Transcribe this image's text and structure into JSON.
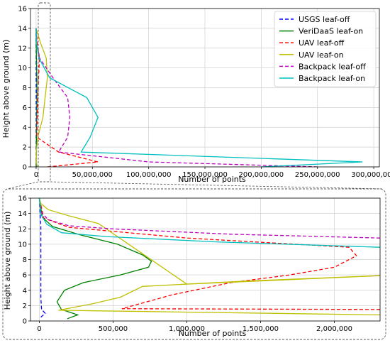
{
  "chart_data": [
    {
      "type": "line",
      "xlabel": "Number of points",
      "ylabel": "Height above ground (m)",
      "xlim": [
        -5000000,
        305000000
      ],
      "ylim": [
        0,
        16
      ],
      "xticks": [
        0,
        50000000,
        100000000,
        150000000,
        200000000,
        250000000,
        300000000
      ],
      "xtick_labels": [
        "0",
        "50,000,000",
        "100,000,000",
        "150,000,000",
        "200,000,000",
        "250,000,000",
        "300,000,000"
      ],
      "yticks": [
        0,
        2,
        4,
        6,
        8,
        10,
        12,
        14,
        16
      ],
      "ytick_labels": [
        "0",
        "2",
        "4",
        "6",
        "8",
        "10",
        "12",
        "14",
        "16"
      ],
      "grid": true,
      "legend": "top-right",
      "series": [
        {
          "name": "USGS leaf-off",
          "color": "#0000ff",
          "dash": "dashed",
          "x": [
            40000,
            60000,
            20000,
            10000,
            10000,
            10000,
            10000,
            10000,
            5000,
            0
          ],
          "y": [
            0,
            0.5,
            1.5,
            3,
            5,
            7,
            9,
            11,
            12.5,
            14
          ]
        },
        {
          "name": "VeriDaaS leaf-on",
          "color": "#008000",
          "dash": "solid",
          "x": [
            300000,
            100000,
            200000,
            300000,
            500000,
            750000,
            700000,
            300000,
            50000,
            0
          ],
          "y": [
            0,
            0.5,
            1.5,
            3,
            5,
            7,
            9,
            11,
            12.5,
            14
          ]
        },
        {
          "name": "UAV leaf-off",
          "color": "#ff0000",
          "dash": "dashed",
          "x": [
            10000000,
            55000000,
            20000000,
            600000,
            1000000,
            1600000,
            2200000,
            3000000,
            1000000,
            0
          ],
          "y": [
            0,
            0.5,
            1.5,
            3,
            5,
            7,
            9,
            11,
            12.5,
            14
          ]
        },
        {
          "name": "UAV leaf-on",
          "color": "#bfbf00",
          "dash": "solid",
          "x": [
            1000000,
            300000,
            150000,
            1500000,
            6000000,
            8000000,
            10000000,
            9000000,
            4000000,
            0
          ],
          "y": [
            0,
            0.5,
            1.5,
            3,
            5,
            7,
            9,
            11,
            12.5,
            14
          ]
        },
        {
          "name": "Backpack leaf-off",
          "color": "#bf00bf",
          "dash": "dashed",
          "x": [
            250000000,
            100000000,
            20000000,
            28000000,
            30000000,
            28000000,
            15000000,
            3000000,
            500000,
            0
          ],
          "y": [
            0,
            0.5,
            1.5,
            3,
            5,
            7,
            9,
            11,
            12.5,
            14
          ]
        },
        {
          "name": "Backpack leaf-on",
          "color": "#00bfbf",
          "dash": "solid",
          "x": [
            200000000,
            290000000,
            40000000,
            48000000,
            55000000,
            45000000,
            12000000,
            2500000,
            300000,
            0
          ],
          "y": [
            0,
            0.5,
            1.5,
            3,
            5,
            7,
            9,
            11,
            12.5,
            14
          ]
        }
      ]
    },
    {
      "type": "line",
      "xlabel": "Number of points",
      "ylabel": "Height above ground (m)",
      "xlim": [
        -60000,
        2310000
      ],
      "ylim": [
        0,
        16
      ],
      "xticks": [
        0,
        500000,
        1000000,
        1500000,
        2000000
      ],
      "xtick_labels": [
        "0",
        "500,000",
        "1,000,000",
        "1,500,000",
        "2,000,000"
      ],
      "yticks": [
        0,
        2,
        4,
        6,
        8,
        10,
        12,
        14,
        16
      ],
      "ytick_labels": [
        "0",
        "2",
        "4",
        "6",
        "8",
        "10",
        "12",
        "14",
        "16"
      ],
      "grid": true,
      "series": [
        {
          "name": "USGS leaf-off",
          "color": "#0000ff",
          "dash": "dashed",
          "x": [
            10000,
            40000,
            15000,
            10000,
            10000,
            10000,
            10000,
            10000,
            10000,
            5000,
            0
          ],
          "y": [
            0.5,
            1.0,
            1.5,
            3,
            5,
            7,
            9,
            11,
            12.5,
            14,
            16
          ]
        },
        {
          "name": "VeriDaaS leaf-on",
          "color": "#008000",
          "dash": "solid",
          "x": [
            190000,
            260000,
            150000,
            120000,
            170000,
            300000,
            550000,
            740000,
            760000,
            700000,
            530000,
            280000,
            90000,
            20000,
            0
          ],
          "y": [
            0.3,
            0.8,
            1.5,
            2.5,
            4,
            5,
            6,
            7,
            7.8,
            8.6,
            10,
            11.2,
            12.3,
            13.5,
            16
          ]
        },
        {
          "name": "UAV leaf-off",
          "color": "#ff0000",
          "dash": "dashed",
          "x": [
            2310000,
            560000,
            900000,
            1300000,
            1700000,
            2000000,
            2150000,
            2100000,
            1000000,
            200000,
            30000,
            0
          ],
          "y": [
            1.5,
            1.6,
            3.4,
            5,
            6,
            7,
            8.5,
            9.6,
            10.8,
            12.2,
            13.4,
            16
          ]
        },
        {
          "name": "UAV leaf-on",
          "color": "#bfbf00",
          "dash": "solid",
          "x": [
            2310000,
            130000,
            350000,
            550000,
            700000,
            1400000,
            2310000,
            1000000,
            400000,
            200000,
            60000,
            10000,
            0
          ],
          "y": [
            0.8,
            1.4,
            2.2,
            3.1,
            4.5,
            5.2,
            5.9,
            4.8,
            12.7,
            13.7,
            14.5,
            15.3,
            16
          ]
        },
        {
          "name": "Backpack leaf-off",
          "color": "#bf00bf",
          "dash": "dashed",
          "x": [
            2310000,
            1300000,
            500000,
            200000,
            60000,
            10000,
            0
          ],
          "y": [
            10.8,
            11.3,
            12.0,
            12.4,
            13.2,
            14.2,
            16
          ]
        },
        {
          "name": "Backpack leaf-on",
          "color": "#00bfbf",
          "dash": "solid",
          "x": [
            2310000,
            1200000,
            450000,
            150000,
            50000,
            10000,
            0
          ],
          "y": [
            9.6,
            10.3,
            11.0,
            11.5,
            12.6,
            13.9,
            16
          ]
        }
      ]
    }
  ]
}
